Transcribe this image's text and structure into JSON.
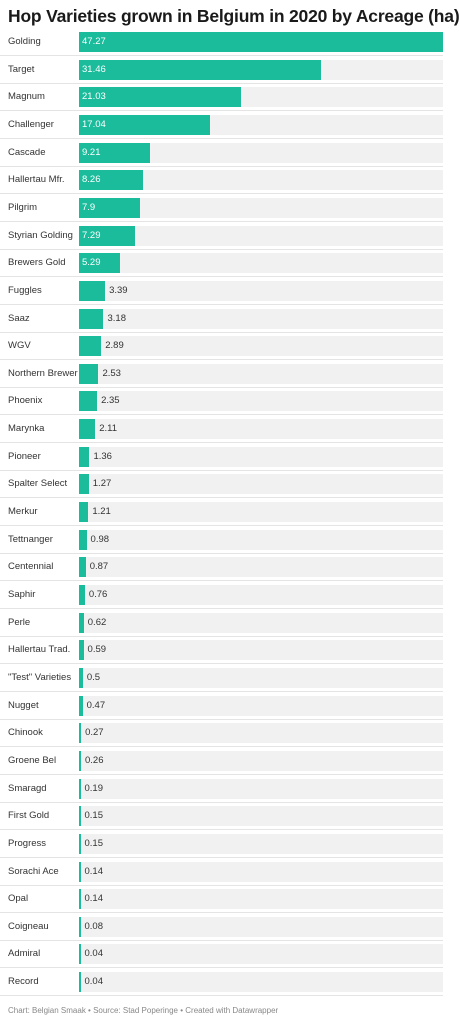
{
  "header": {
    "title": "Hop Varieties grown in Belgium in 2020 by Acreage (ha)"
  },
  "chart_data": {
    "type": "bar",
    "orientation": "horizontal",
    "title": "Hop Varieties grown in Belgium in 2020 by Acreage (ha)",
    "xlim": [
      0,
      47.27
    ],
    "grid": false,
    "bar_color": "#1bbc9b",
    "categories": [
      "Golding",
      "Target",
      "Magnum",
      "Challenger",
      "Cascade",
      "Hallertau Mfr.",
      "Pilgrim",
      "Styrian Golding",
      "Brewers Gold",
      "Fuggles",
      "Saaz",
      "WGV",
      "Northern Brewer",
      "Phoenix",
      "Marynka",
      "Pioneer",
      "Spalter Select",
      "Merkur",
      "Tettnanger",
      "Centennial",
      "Saphir",
      "Perle",
      "Hallertau Trad.",
      "\"Test\" Varieties",
      "Nugget",
      "Chinook",
      "Groene Bel",
      "Smaragd",
      "First Gold",
      "Progress",
      "Sorachi Ace",
      "Opal",
      "Coigneau",
      "Admiral",
      "Record"
    ],
    "values": [
      47.27,
      31.46,
      21.03,
      17.04,
      9.21,
      8.26,
      7.9,
      7.29,
      5.29,
      3.39,
      3.18,
      2.89,
      2.53,
      2.35,
      2.11,
      1.36,
      1.27,
      1.21,
      0.98,
      0.87,
      0.76,
      0.62,
      0.59,
      0.5,
      0.47,
      0.27,
      0.26,
      0.19,
      0.15,
      0.15,
      0.14,
      0.14,
      0.08,
      0.04,
      0.04
    ]
  },
  "footer": {
    "credit": "Chart: Belgian Smaak • Source: Stad Poperinge • Created with Datawrapper"
  }
}
